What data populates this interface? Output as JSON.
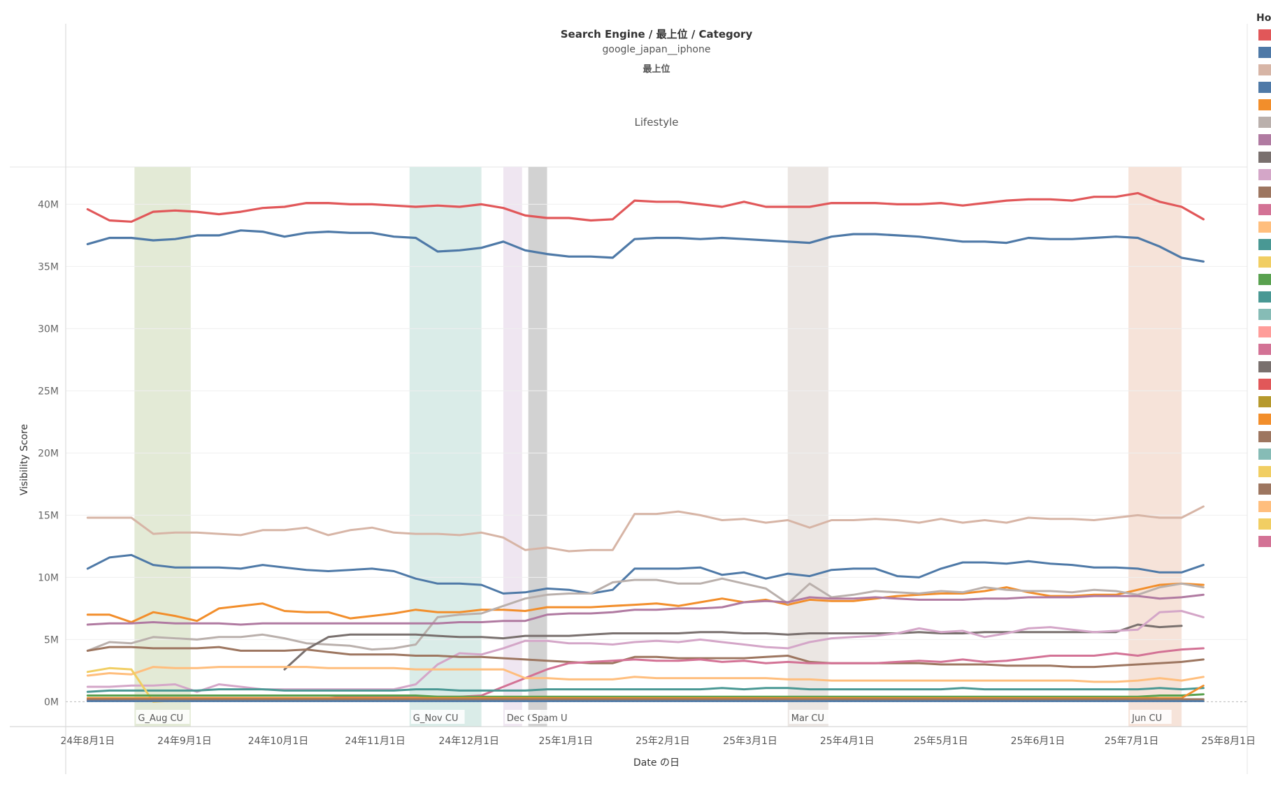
{
  "header": {
    "title": "Search Engine / 最上位 / Category",
    "subtitle": "google_japan__iphone",
    "subtitle2": "最上位",
    "category": "Lifestyle"
  },
  "legend": {
    "title": "Hos",
    "colors": [
      "#e15759",
      "#4e79a7",
      "#d7b5a6",
      "#4e79a7",
      "#f28e2b",
      "#bab0ac",
      "#b07aa1",
      "#79706e",
      "#d4a6c8",
      "#9d7660",
      "#d37295",
      "#ffbe7d",
      "#499894",
      "#f1ce63",
      "#59a14f",
      "#499894",
      "#86bcb6",
      "#ff9d9a",
      "#d37295",
      "#79706e",
      "#e15759",
      "#b6992d",
      "#f28e2b",
      "#9d7660",
      "#86bcb6",
      "#f1ce63",
      "#9d7660",
      "#ffbe7d",
      "#f1ce63",
      "#d37295"
    ]
  },
  "chart_data": {
    "type": "line",
    "xlabel": "Date の日",
    "ylabel": "Visibility Score",
    "ylim": [
      -2000000,
      43000000
    ],
    "y_ticks": [
      0,
      5000000,
      10000000,
      15000000,
      20000000,
      25000000,
      30000000,
      35000000,
      40000000
    ],
    "y_tick_labels": [
      "0M",
      "5M",
      "10M",
      "15M",
      "20M",
      "25M",
      "30M",
      "35M",
      "40M"
    ],
    "x_range": [
      "2024-07-25",
      "2025-08-07"
    ],
    "x_ticks": [
      "2024-08-01",
      "2024-09-01",
      "2024-10-01",
      "2024-11-01",
      "2024-12-01",
      "2025-01-01",
      "2025-02-01",
      "2025-03-01",
      "2025-04-01",
      "2025-05-01",
      "2025-06-01",
      "2025-07-01",
      "2025-08-01"
    ],
    "x_tick_labels": [
      "24年8月1日",
      "24年9月1日",
      "24年10月1日",
      "24年11月1日",
      "24年12月1日",
      "25年1月1日",
      "25年2月1日",
      "25年3月1日",
      "25年4月1日",
      "25年5月1日",
      "25年6月1日",
      "25年7月1日",
      "25年8月1日"
    ],
    "grid": true,
    "bands": [
      {
        "label": "G_Aug CU",
        "start": "2024-08-16",
        "end": "2024-09-03",
        "color": "#e3ead6"
      },
      {
        "label": "G_Nov CU",
        "start": "2024-11-12",
        "end": "2024-12-05",
        "color": "#daece8"
      },
      {
        "label": "Dec C",
        "start": "2024-12-12",
        "end": "2024-12-18",
        "color": "#efe6f1"
      },
      {
        "label": "Spam U",
        "start": "2024-12-20",
        "end": "2024-12-26",
        "color": "#d2d2d2"
      },
      {
        "label": "Mar CU",
        "start": "2025-03-13",
        "end": "2025-03-26",
        "color": "#ebe6e3"
      },
      {
        "label": "Jun CU",
        "start": "2025-06-30",
        "end": "2025-07-17",
        "color": "#f6e3d9"
      }
    ],
    "series_start": "2024-08-01",
    "series_step_days": 7,
    "series": [
      {
        "color": "#e15759",
        "width": 3.2,
        "values": [
          39.6,
          38.7,
          38.6,
          39.4,
          39.5,
          39.4,
          39.2,
          39.4,
          39.7,
          39.8,
          40.1,
          40.1,
          40.0,
          40.0,
          39.9,
          39.8,
          39.9,
          39.8,
          40.0,
          39.7,
          39.1,
          38.9,
          38.9,
          38.7,
          38.8,
          40.3,
          40.2,
          40.2,
          40.0,
          39.8,
          40.2,
          39.8,
          39.8,
          39.8,
          40.1,
          40.1,
          40.1,
          40.0,
          40.0,
          40.1,
          39.9,
          40.1,
          40.3,
          40.4,
          40.4,
          40.3,
          40.6,
          40.6,
          40.9,
          40.2,
          39.8,
          38.8
        ]
      },
      {
        "color": "#4e79a7",
        "width": 3.2,
        "values": [
          36.8,
          37.3,
          37.3,
          37.1,
          37.2,
          37.5,
          37.5,
          37.9,
          37.8,
          37.4,
          37.7,
          37.8,
          37.7,
          37.7,
          37.4,
          37.3,
          36.2,
          36.3,
          36.5,
          37.0,
          36.3,
          36.0,
          35.8,
          35.8,
          35.7,
          37.2,
          37.3,
          37.3,
          37.2,
          37.3,
          37.2,
          37.1,
          37.0,
          36.9,
          37.4,
          37.6,
          37.6,
          37.5,
          37.4,
          37.2,
          37.0,
          37.0,
          36.9,
          37.3,
          37.2,
          37.2,
          37.3,
          37.4,
          37.3,
          36.6,
          35.7,
          35.4
        ]
      },
      {
        "color": "#d7b5a6",
        "width": 3.0,
        "values": [
          14.8,
          14.8,
          14.8,
          13.5,
          13.6,
          13.6,
          13.5,
          13.4,
          13.8,
          13.8,
          14.0,
          13.4,
          13.8,
          14.0,
          13.6,
          13.5,
          13.5,
          13.4,
          13.6,
          13.2,
          12.2,
          12.4,
          12.1,
          12.2,
          12.2,
          15.1,
          15.1,
          15.3,
          15.0,
          14.6,
          14.7,
          14.4,
          14.6,
          14.0,
          14.6,
          14.6,
          14.7,
          14.6,
          14.4,
          14.7,
          14.4,
          14.6,
          14.4,
          14.8,
          14.7,
          14.7,
          14.6,
          14.8,
          15.0,
          14.8,
          14.8,
          15.7
        ]
      },
      {
        "color": "#4e79a7",
        "width": 3.0,
        "values": [
          10.7,
          11.6,
          11.8,
          11.0,
          10.8,
          10.8,
          10.8,
          10.7,
          11.0,
          10.8,
          10.6,
          10.5,
          10.6,
          10.7,
          10.5,
          9.9,
          9.5,
          9.5,
          9.4,
          8.7,
          8.8,
          9.1,
          9.0,
          8.7,
          9.0,
          10.7,
          10.7,
          10.7,
          10.8,
          10.2,
          10.4,
          9.9,
          10.3,
          10.1,
          10.6,
          10.7,
          10.7,
          10.1,
          10.0,
          10.7,
          11.2,
          11.2,
          11.1,
          11.3,
          11.1,
          11.0,
          10.8,
          10.8,
          10.7,
          10.4,
          10.4,
          11.0
        ]
      },
      {
        "color": "#f28e2b",
        "width": 3.0,
        "values": [
          7.0,
          7.0,
          6.4,
          7.2,
          6.9,
          6.5,
          7.5,
          7.7,
          7.9,
          7.3,
          7.2,
          7.2,
          6.7,
          6.9,
          7.1,
          7.4,
          7.2,
          7.2,
          7.4,
          7.4,
          7.3,
          7.6,
          7.6,
          7.6,
          7.7,
          7.8,
          7.9,
          7.7,
          8.0,
          8.3,
          8.0,
          8.2,
          7.8,
          8.2,
          8.1,
          8.1,
          8.3,
          8.5,
          8.6,
          8.7,
          8.7,
          8.9,
          9.2,
          8.8,
          8.5,
          8.5,
          8.6,
          8.6,
          9.0,
          9.4,
          9.5,
          9.4
        ]
      },
      {
        "color": "#bab0ac",
        "width": 3.0,
        "values": [
          4.1,
          4.8,
          4.7,
          5.2,
          5.1,
          5.0,
          5.2,
          5.2,
          5.4,
          5.1,
          4.7,
          4.6,
          4.5,
          4.2,
          4.3,
          4.6,
          6.8,
          7.0,
          7.1,
          7.7,
          8.3,
          8.6,
          8.7,
          8.7,
          9.6,
          9.8,
          9.8,
          9.5,
          9.5,
          9.9,
          9.5,
          9.1,
          7.9,
          9.5,
          8.4,
          8.6,
          8.9,
          8.8,
          8.7,
          8.9,
          8.8,
          9.2,
          9.0,
          8.9,
          8.9,
          8.8,
          9.0,
          8.9,
          8.6,
          9.2,
          9.5,
          9.2
        ]
      },
      {
        "color": "#b07aa1",
        "width": 3.0,
        "values": [
          6.2,
          6.3,
          6.3,
          6.4,
          6.3,
          6.3,
          6.3,
          6.2,
          6.3,
          6.3,
          6.3,
          6.3,
          6.3,
          6.3,
          6.3,
          6.3,
          6.3,
          6.4,
          6.4,
          6.5,
          6.5,
          7.0,
          7.1,
          7.1,
          7.2,
          7.4,
          7.4,
          7.5,
          7.5,
          7.6,
          8.0,
          8.1,
          8.0,
          8.4,
          8.3,
          8.3,
          8.4,
          8.3,
          8.2,
          8.2,
          8.2,
          8.3,
          8.3,
          8.4,
          8.4,
          8.4,
          8.5,
          8.5,
          8.5,
          8.3,
          8.4,
          8.6
        ]
      },
      {
        "color": "#79706e",
        "width": 3.0,
        "start_index": 9,
        "values": [
          2.6,
          4.2,
          5.2,
          5.4,
          5.4,
          5.4,
          5.4,
          5.3,
          5.2,
          5.2,
          5.1,
          5.3,
          5.3,
          5.3,
          5.4,
          5.5,
          5.5,
          5.5,
          5.5,
          5.6,
          5.6,
          5.5,
          5.5,
          5.4,
          5.5,
          5.5,
          5.5,
          5.5,
          5.5,
          5.6,
          5.5,
          5.5,
          5.6,
          5.6,
          5.6,
          5.6,
          5.6,
          5.6,
          5.6,
          6.2,
          6.0,
          6.1
        ]
      },
      {
        "color": "#d4a6c8",
        "width": 3.0,
        "values": [
          1.2,
          1.2,
          1.3,
          1.3,
          1.4,
          0.8,
          1.4,
          1.2,
          1.0,
          1.0,
          1.0,
          1.0,
          1.0,
          1.0,
          1.0,
          1.4,
          3.0,
          3.9,
          3.8,
          4.3,
          4.9,
          4.9,
          4.7,
          4.7,
          4.6,
          4.8,
          4.9,
          4.8,
          5.0,
          4.8,
          4.6,
          4.4,
          4.3,
          4.8,
          5.1,
          5.2,
          5.3,
          5.5,
          5.9,
          5.6,
          5.7,
          5.2,
          5.5,
          5.9,
          6.0,
          5.8,
          5.6,
          5.7,
          5.8,
          7.2,
          7.3,
          6.8
        ]
      },
      {
        "color": "#9d7660",
        "width": 3.0,
        "values": [
          4.1,
          4.4,
          4.4,
          4.3,
          4.3,
          4.3,
          4.4,
          4.1,
          4.1,
          4.1,
          4.2,
          4.0,
          3.8,
          3.8,
          3.8,
          3.7,
          3.7,
          3.6,
          3.6,
          3.5,
          3.4,
          3.3,
          3.2,
          3.1,
          3.1,
          3.6,
          3.6,
          3.5,
          3.5,
          3.5,
          3.5,
          3.6,
          3.7,
          3.2,
          3.1,
          3.1,
          3.1,
          3.1,
          3.1,
          3.0,
          3.0,
          3.0,
          2.9,
          2.9,
          2.9,
          2.8,
          2.8,
          2.9,
          3.0,
          3.1,
          3.2,
          3.4
        ]
      },
      {
        "color": "#d37295",
        "width": 3.0,
        "values": [
          0.1,
          0.2,
          0.2,
          0.3,
          0.3,
          0.3,
          0.3,
          0.3,
          0.3,
          0.3,
          0.3,
          0.3,
          0.4,
          0.4,
          0.4,
          0.4,
          0.4,
          0.4,
          0.5,
          1.2,
          1.9,
          2.6,
          3.1,
          3.2,
          3.3,
          3.4,
          3.3,
          3.3,
          3.4,
          3.2,
          3.3,
          3.1,
          3.2,
          3.1,
          3.1,
          3.1,
          3.1,
          3.2,
          3.3,
          3.2,
          3.4,
          3.2,
          3.3,
          3.5,
          3.7,
          3.7,
          3.7,
          3.9,
          3.7,
          4.0,
          4.2,
          4.3
        ]
      },
      {
        "color": "#ffbe7d",
        "width": 3.0,
        "values": [
          2.1,
          2.3,
          2.2,
          2.8,
          2.7,
          2.7,
          2.8,
          2.8,
          2.8,
          2.8,
          2.8,
          2.7,
          2.7,
          2.7,
          2.7,
          2.6,
          2.6,
          2.6,
          2.6,
          2.6,
          1.9,
          1.9,
          1.8,
          1.8,
          1.8,
          2.0,
          1.9,
          1.9,
          1.9,
          1.9,
          1.9,
          1.9,
          1.8,
          1.8,
          1.7,
          1.7,
          1.7,
          1.7,
          1.7,
          1.7,
          1.7,
          1.7,
          1.7,
          1.7,
          1.7,
          1.7,
          1.6,
          1.6,
          1.7,
          1.9,
          1.7,
          2.0
        ]
      },
      {
        "color": "#499894",
        "width": 3.0,
        "values": [
          0.8,
          0.9,
          0.9,
          0.9,
          0.9,
          0.9,
          1.0,
          1.0,
          1.0,
          0.9,
          0.9,
          0.9,
          0.9,
          0.9,
          0.9,
          1.0,
          1.0,
          0.9,
          0.9,
          0.9,
          0.9,
          1.0,
          1.0,
          1.0,
          1.0,
          1.0,
          1.0,
          1.0,
          1.0,
          1.1,
          1.0,
          1.1,
          1.1,
          1.0,
          1.0,
          1.0,
          1.0,
          1.0,
          1.0,
          1.0,
          1.1,
          1.0,
          1.0,
          1.0,
          1.0,
          1.0,
          1.0,
          1.0,
          1.0,
          1.1,
          1.0,
          1.1
        ]
      },
      {
        "color": "#f1ce63",
        "width": 3.0,
        "values": [
          2.4,
          2.7,
          2.6,
          0.0,
          0.1,
          0.1,
          0.1,
          0.1,
          0.1,
          0.1,
          0.1,
          0.1,
          0.1,
          0.1,
          0.1,
          0.1,
          0.1,
          0.1,
          0.1,
          0.1,
          0.1,
          0.1,
          0.1,
          0.1,
          0.1,
          0.1,
          0.1,
          0.1,
          0.1,
          0.1,
          0.1,
          0.1,
          0.1,
          0.1,
          0.1,
          0.1,
          0.1,
          0.1,
          0.1,
          0.1,
          0.1,
          0.1,
          0.1,
          0.1,
          0.1,
          0.1,
          0.1,
          0.1,
          0.1,
          0.1,
          0.1,
          0.1
        ]
      },
      {
        "color": "#59a14f",
        "width": 3.0,
        "values": [
          0.5,
          0.5,
          0.5,
          0.5,
          0.5,
          0.5,
          0.5,
          0.5,
          0.5,
          0.5,
          0.5,
          0.5,
          0.5,
          0.5,
          0.5,
          0.5,
          0.4,
          0.4,
          0.4,
          0.4,
          0.4,
          0.4,
          0.4,
          0.4,
          0.4,
          0.4,
          0.4,
          0.4,
          0.4,
          0.4,
          0.4,
          0.4,
          0.4,
          0.4,
          0.4,
          0.4,
          0.4,
          0.4,
          0.4,
          0.4,
          0.4,
          0.4,
          0.4,
          0.4,
          0.4,
          0.4,
          0.4,
          0.4,
          0.4,
          0.5,
          0.5,
          0.6
        ]
      },
      {
        "color": "#f28e2b",
        "width": 2.8,
        "values": [
          0.3,
          0.3,
          0.3,
          0.3,
          0.3,
          0.3,
          0.3,
          0.3,
          0.3,
          0.3,
          0.3,
          0.3,
          0.3,
          0.3,
          0.3,
          0.3,
          0.3,
          0.3,
          0.3,
          0.3,
          0.3,
          0.3,
          0.3,
          0.3,
          0.3,
          0.3,
          0.3,
          0.3,
          0.3,
          0.3,
          0.3,
          0.3,
          0.3,
          0.3,
          0.3,
          0.3,
          0.3,
          0.3,
          0.3,
          0.3,
          0.3,
          0.3,
          0.3,
          0.3,
          0.3,
          0.3,
          0.3,
          0.3,
          0.3,
          0.3,
          0.3,
          1.3
        ]
      },
      {
        "color": "#9d7660",
        "width": 2.8,
        "values": [
          0.2,
          0.2,
          0.2,
          0.2,
          0.2,
          0.2,
          0.2,
          0.2,
          0.2,
          0.2,
          0.2,
          0.2,
          0.2,
          0.2,
          0.2,
          0.2,
          0.2,
          0.2,
          0.2,
          0.2,
          0.2,
          0.2,
          0.2,
          0.2,
          0.2,
          0.2,
          0.2,
          0.2,
          0.2,
          0.2,
          0.2,
          0.2,
          0.2,
          0.2,
          0.2,
          0.2,
          0.2,
          0.2,
          0.2,
          0.2,
          0.2,
          0.2,
          0.2,
          0.2,
          0.2,
          0.2,
          0.2,
          0.2,
          0.2,
          0.2,
          0.2,
          0.2
        ]
      },
      {
        "color": "#4e79a7",
        "width": 2.8,
        "values": [
          0.05,
          0.05,
          0.05,
          0.05,
          0.05,
          0.05,
          0.05,
          0.05,
          0.05,
          0.05,
          0.05,
          0.05,
          0.05,
          0.05,
          0.05,
          0.05,
          0.05,
          0.05,
          0.05,
          0.05,
          0.05,
          0.05,
          0.05,
          0.05,
          0.05,
          0.05,
          0.05,
          0.05,
          0.05,
          0.05,
          0.05,
          0.05,
          0.05,
          0.05,
          0.05,
          0.05,
          0.05,
          0.05,
          0.05,
          0.05,
          0.05,
          0.05,
          0.05,
          0.05,
          0.05,
          0.05,
          0.05,
          0.05,
          0.05,
          0.05,
          0.05,
          0.05
        ]
      }
    ]
  }
}
